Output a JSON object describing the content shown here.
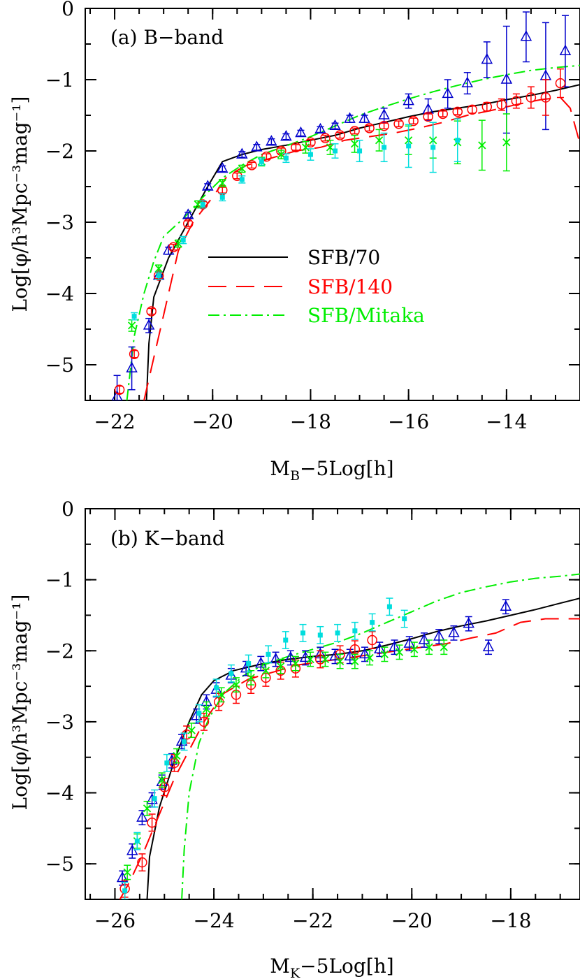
{
  "chart_data": [
    {
      "type": "line",
      "panel_label": "(a) B−band",
      "xlabel_main": "M",
      "xlabel_sub": "B",
      "xlabel_rest": "−5Log[h]",
      "ylabel": "Log[φ/h³Mpc⁻³mag⁻¹]",
      "xlim": [
        -22.6,
        -12.5
      ],
      "ylim": [
        -5.5,
        0
      ],
      "xticks": [
        -22,
        -20,
        -18,
        -16,
        -14
      ],
      "xtick_labels": [
        "−22",
        "−20",
        "−18",
        "−16",
        "−14"
      ],
      "yticks": [
        0,
        -1,
        -2,
        -3,
        -4,
        -5
      ],
      "ytick_labels": [
        "0",
        "−1",
        "−2",
        "−3",
        "−4",
        "−5"
      ],
      "legend": {
        "placement": "center",
        "entries": [
          {
            "label": "SFB/70",
            "color": "#000000",
            "dash": "solid"
          },
          {
            "label": "SFB/140",
            "color": "#ff0000",
            "dash": "dashed"
          },
          {
            "label": "SFB/Mitaka",
            "color": "#00ee00",
            "dash": "dashdot"
          }
        ]
      },
      "model_curves": [
        {
          "color": "#000000",
          "dash": "solid",
          "x": [
            -21.35,
            -21.3,
            -21.2,
            -20.9,
            -20.5,
            -20.1,
            -19.8,
            -19.4,
            -19.0,
            -18.5,
            -18.0,
            -17.5,
            -17.0,
            -16.5,
            -16.0,
            -15.5,
            -15.0,
            -14.5,
            -14.0,
            -13.5,
            -13.0,
            -12.5
          ],
          "y": [
            -5.5,
            -4.7,
            -4.05,
            -3.5,
            -3.0,
            -2.5,
            -2.15,
            -2.05,
            -1.98,
            -1.92,
            -1.85,
            -1.78,
            -1.68,
            -1.6,
            -1.52,
            -1.45,
            -1.4,
            -1.35,
            -1.28,
            -1.22,
            -1.15,
            -1.07
          ]
        },
        {
          "color": "#ff0000",
          "dash": "dashed",
          "x": [
            -21.4,
            -21.2,
            -21.0,
            -20.7,
            -20.4,
            -20.0,
            -19.7,
            -19.3,
            -18.8,
            -18.3,
            -17.8,
            -17.3,
            -16.8,
            -16.3,
            -15.8,
            -15.3,
            -14.8,
            -14.3,
            -13.8,
            -13.3,
            -12.9,
            -12.7,
            -12.5
          ],
          "y": [
            -5.5,
            -4.9,
            -4.3,
            -3.4,
            -3.0,
            -2.65,
            -2.35,
            -2.2,
            -2.1,
            -2.0,
            -1.95,
            -1.85,
            -1.8,
            -1.75,
            -1.68,
            -1.6,
            -1.5,
            -1.43,
            -1.35,
            -1.28,
            -1.25,
            -1.4,
            -1.9
          ]
        },
        {
          "color": "#00ee00",
          "dash": "dashdot",
          "x": [
            -21.75,
            -21.6,
            -21.4,
            -21.2,
            -21.0,
            -20.6,
            -20.2,
            -19.8,
            -19.4,
            -19.0,
            -18.5,
            -18.0,
            -17.5,
            -17.0,
            -16.5,
            -16.0,
            -15.5,
            -15.0,
            -14.5,
            -14.0,
            -13.5,
            -13.0,
            -12.5
          ],
          "y": [
            -5.5,
            -4.6,
            -4.0,
            -3.55,
            -3.2,
            -2.95,
            -2.65,
            -2.38,
            -2.2,
            -2.05,
            -1.93,
            -1.8,
            -1.65,
            -1.5,
            -1.38,
            -1.27,
            -1.17,
            -1.08,
            -1.0,
            -0.93,
            -0.87,
            -0.83,
            -0.8
          ]
        }
      ],
      "observed_series": [
        {
          "marker": "triangle",
          "color": "#0000cc",
          "x": [
            -21.95,
            -21.65,
            -21.3,
            -21.1,
            -20.9,
            -20.5,
            -20.1,
            -19.8,
            -19.4,
            -19.1,
            -18.8,
            -18.5,
            -18.2,
            -17.8,
            -17.5,
            -17.2,
            -16.9,
            -16.5,
            -16.0,
            -15.6,
            -15.2,
            -14.8,
            -14.4,
            -14.0,
            -13.6,
            -13.2,
            -12.8
          ],
          "y": [
            -5.45,
            -5.05,
            -4.45,
            -3.75,
            -3.4,
            -2.9,
            -2.5,
            -2.25,
            -2.05,
            -1.95,
            -1.87,
            -1.8,
            -1.75,
            -1.7,
            -1.65,
            -1.55,
            -1.55,
            -1.5,
            -1.3,
            -1.42,
            -1.2,
            -1.05,
            -0.72,
            -1.0,
            -0.4,
            -0.95,
            -0.6
          ],
          "err": [
            0.3,
            0.3,
            0.1,
            0.05,
            0.05,
            0.04,
            0.04,
            0.04,
            0.04,
            0.04,
            0.04,
            0.04,
            0.04,
            0.04,
            0.04,
            0.05,
            0.05,
            0.1,
            0.1,
            0.15,
            0.2,
            0.15,
            0.25,
            0.75,
            0.35,
            0.75,
            0.5
          ]
        },
        {
          "marker": "circle",
          "color": "#ff0000",
          "x": [
            -21.9,
            -21.6,
            -21.25,
            -21.1,
            -20.8,
            -20.5,
            -20.2,
            -19.8,
            -19.5,
            -19.2,
            -18.9,
            -18.6,
            -18.3,
            -18.0,
            -17.7,
            -17.4,
            -17.1,
            -16.8,
            -16.5,
            -16.2,
            -15.9,
            -15.6,
            -15.3,
            -15.0,
            -14.7,
            -14.4,
            -14.1,
            -13.8,
            -13.5,
            -13.2,
            -12.9
          ],
          "y": [
            -5.35,
            -4.85,
            -4.25,
            -3.75,
            -3.35,
            -3.02,
            -2.75,
            -2.55,
            -2.35,
            -2.2,
            -2.08,
            -2.0,
            -1.95,
            -1.88,
            -1.82,
            -1.78,
            -1.72,
            -1.68,
            -1.65,
            -1.62,
            -1.58,
            -1.52,
            -1.48,
            -1.45,
            -1.42,
            -1.38,
            -1.35,
            -1.3,
            -1.25,
            -1.25,
            -1.05
          ],
          "err": [
            0.05,
            0.05,
            0.04,
            0.04,
            0.04,
            0.04,
            0.04,
            0.04,
            0.04,
            0.04,
            0.04,
            0.04,
            0.04,
            0.04,
            0.04,
            0.04,
            0.04,
            0.04,
            0.04,
            0.04,
            0.04,
            0.04,
            0.04,
            0.04,
            0.05,
            0.06,
            0.08,
            0.1,
            0.15,
            0.25,
            0.2
          ]
        },
        {
          "marker": "cross",
          "color": "#00ee00",
          "x": [
            -21.65,
            -21.1,
            -20.7,
            -20.3,
            -19.8,
            -19.4,
            -19.0,
            -18.6,
            -18.1,
            -17.6,
            -17.1,
            -16.6,
            -16.0,
            -15.5,
            -15.0,
            -14.5,
            -14.0
          ],
          "y": [
            -4.45,
            -3.65,
            -3.3,
            -2.75,
            -2.45,
            -2.25,
            -2.15,
            -2.05,
            -1.95,
            -1.95,
            -1.9,
            -1.85,
            -1.85,
            -1.85,
            -1.88,
            -1.92,
            -1.88
          ],
          "err": [
            0.08,
            0.05,
            0.05,
            0.05,
            0.05,
            0.05,
            0.06,
            0.06,
            0.08,
            0.1,
            0.12,
            0.15,
            0.2,
            0.25,
            0.3,
            0.35,
            0.4
          ]
        },
        {
          "marker": "square",
          "color": "#00dddd",
          "x": [
            -21.6,
            -21.1,
            -20.6,
            -20.2,
            -19.8,
            -19.4,
            -19.0,
            -18.5,
            -18.0,
            -17.5,
            -17.0,
            -16.5,
            -16.0,
            -15.5,
            -15.0
          ],
          "y": [
            -4.32,
            -3.75,
            -3.25,
            -2.75,
            -2.65,
            -2.4,
            -2.15,
            -2.1,
            -2.05,
            -2.0,
            -2.0,
            -1.95,
            -1.93,
            -1.95,
            -1.85
          ],
          "err": [
            0.05,
            0.05,
            0.05,
            0.05,
            0.05,
            0.05,
            0.05,
            0.06,
            0.08,
            0.1,
            0.15,
            0.2,
            0.3,
            0.35,
            0.3
          ]
        }
      ]
    },
    {
      "type": "line",
      "panel_label": "(b) K−band",
      "xlabel_main": "M",
      "xlabel_sub": "K",
      "xlabel_rest": "−5Log[h]",
      "ylabel": "Log[φ/h³Mpc⁻³mag⁻¹]",
      "xlim": [
        -26.6,
        -16.6
      ],
      "ylim": [
        -5.5,
        0
      ],
      "xticks": [
        -26,
        -24,
        -22,
        -20,
        -18
      ],
      "xtick_labels": [
        "−26",
        "−24",
        "−22",
        "−20",
        "−18"
      ],
      "yticks": [
        0,
        -1,
        -2,
        -3,
        -4,
        -5
      ],
      "ytick_labels": [
        "0",
        "−1",
        "−2",
        "−3",
        "−4",
        "−5"
      ],
      "model_curves": [
        {
          "color": "#000000",
          "dash": "solid",
          "x": [
            -25.35,
            -25.3,
            -25.1,
            -24.8,
            -24.5,
            -24.25,
            -24.0,
            -23.6,
            -23.0,
            -22.5,
            -22.0,
            -21.5,
            -21.0,
            -20.5,
            -20.0,
            -19.5,
            -19.0,
            -18.5,
            -18.0,
            -17.5,
            -17.0,
            -16.6
          ],
          "y": [
            -5.5,
            -4.9,
            -4.2,
            -3.55,
            -3.0,
            -2.62,
            -2.42,
            -2.28,
            -2.18,
            -2.12,
            -2.08,
            -2.05,
            -2.0,
            -1.92,
            -1.83,
            -1.73,
            -1.65,
            -1.58,
            -1.5,
            -1.42,
            -1.33,
            -1.26
          ]
        },
        {
          "color": "#ff0000",
          "dash": "dashed",
          "x": [
            -25.9,
            -25.7,
            -25.4,
            -25.1,
            -24.8,
            -24.5,
            -24.2,
            -23.8,
            -23.3,
            -22.8,
            -22.3,
            -21.8,
            -21.3,
            -20.8,
            -20.3,
            -19.8,
            -19.3,
            -18.8,
            -18.3,
            -17.8,
            -17.3,
            -16.6
          ],
          "y": [
            -5.5,
            -5.25,
            -4.8,
            -4.3,
            -3.8,
            -3.4,
            -3.0,
            -2.6,
            -2.4,
            -2.3,
            -2.2,
            -2.15,
            -2.1,
            -2.05,
            -2.0,
            -1.95,
            -1.9,
            -1.82,
            -1.75,
            -1.6,
            -1.55,
            -1.55
          ]
        },
        {
          "color": "#00ee00",
          "dash": "dashdot",
          "x": [
            -24.65,
            -24.6,
            -24.5,
            -24.3,
            -24.1,
            -23.8,
            -23.4,
            -23.0,
            -22.5,
            -22.0,
            -21.5,
            -21.0,
            -20.5,
            -20.0,
            -19.5,
            -19.0,
            -18.5,
            -18.0,
            -17.5,
            -17.0,
            -16.6
          ],
          "y": [
            -5.5,
            -4.8,
            -4.0,
            -3.3,
            -2.95,
            -2.6,
            -2.35,
            -2.2,
            -2.08,
            -1.98,
            -1.88,
            -1.75,
            -1.6,
            -1.45,
            -1.3,
            -1.18,
            -1.1,
            -1.03,
            -0.98,
            -0.95,
            -0.92
          ]
        }
      ],
      "observed_series": [
        {
          "marker": "triangle",
          "color": "#0000cc",
          "x": [
            -25.85,
            -25.65,
            -25.45,
            -25.25,
            -25.05,
            -24.85,
            -24.65,
            -24.35,
            -24.15,
            -23.95,
            -23.65,
            -23.35,
            -23.05,
            -22.75,
            -22.45,
            -22.15,
            -21.85,
            -21.55,
            -21.25,
            -20.95,
            -20.65,
            -20.35,
            -20.05,
            -19.75,
            -19.45,
            -19.15,
            -18.85,
            -18.45,
            -18.1
          ],
          "y": [
            -5.2,
            -4.82,
            -4.35,
            -4.1,
            -3.85,
            -3.55,
            -3.28,
            -2.92,
            -2.72,
            -2.55,
            -2.35,
            -2.25,
            -2.18,
            -2.12,
            -2.1,
            -2.1,
            -2.05,
            -2.08,
            -2.08,
            -2.05,
            -1.98,
            -1.95,
            -1.9,
            -1.85,
            -1.8,
            -1.75,
            -1.62,
            -1.95,
            -1.38
          ]
        },
        {
          "marker": "circle",
          "color": "#ff0000",
          "x": [
            -25.8,
            -25.45,
            -25.25,
            -25.0,
            -24.8,
            -24.55,
            -24.2,
            -23.9,
            -23.55,
            -23.25,
            -22.95,
            -22.65,
            -22.35,
            -21.85,
            -21.45,
            -21.15,
            -20.8
          ],
          "y": [
            -5.35,
            -4.98,
            -4.42,
            -3.92,
            -3.58,
            -3.18,
            -3.0,
            -2.72,
            -2.62,
            -2.48,
            -2.38,
            -2.28,
            -2.25,
            -2.12,
            -2.05,
            -1.98,
            -1.85
          ]
        },
        {
          "marker": "cross",
          "color": "#00ee00",
          "x": [
            -25.75,
            -25.55,
            -25.35,
            -25.05,
            -24.75,
            -24.45,
            -24.15,
            -23.85,
            -23.55,
            -23.25,
            -22.95,
            -22.65,
            -22.35,
            -22.05,
            -21.75,
            -21.45,
            -21.15,
            -20.85,
            -20.55,
            -20.25,
            -19.95,
            -19.65,
            -19.35
          ],
          "y": [
            -5.12,
            -4.68,
            -4.22,
            -3.82,
            -3.48,
            -3.12,
            -2.82,
            -2.62,
            -2.48,
            -2.38,
            -2.28,
            -2.22,
            -2.18,
            -2.12,
            -2.12,
            -2.15,
            -2.15,
            -2.1,
            -2.05,
            -2.02,
            -1.98,
            -1.95,
            -1.95
          ]
        },
        {
          "marker": "square",
          "color": "#00dddd",
          "x": [
            -25.8,
            -25.55,
            -25.2,
            -24.95,
            -24.6,
            -24.3,
            -23.95,
            -23.65,
            -23.3,
            -22.9,
            -22.55,
            -22.2,
            -21.85,
            -21.5,
            -21.15,
            -20.8,
            -20.45,
            -20.15
          ],
          "y": [
            -5.38,
            -4.68,
            -4.08,
            -3.58,
            -3.28,
            -2.88,
            -2.52,
            -2.32,
            -2.18,
            -2.05,
            -1.85,
            -1.75,
            -1.78,
            -1.75,
            -1.72,
            -1.6,
            -1.38,
            -1.55
          ]
        }
      ]
    }
  ]
}
